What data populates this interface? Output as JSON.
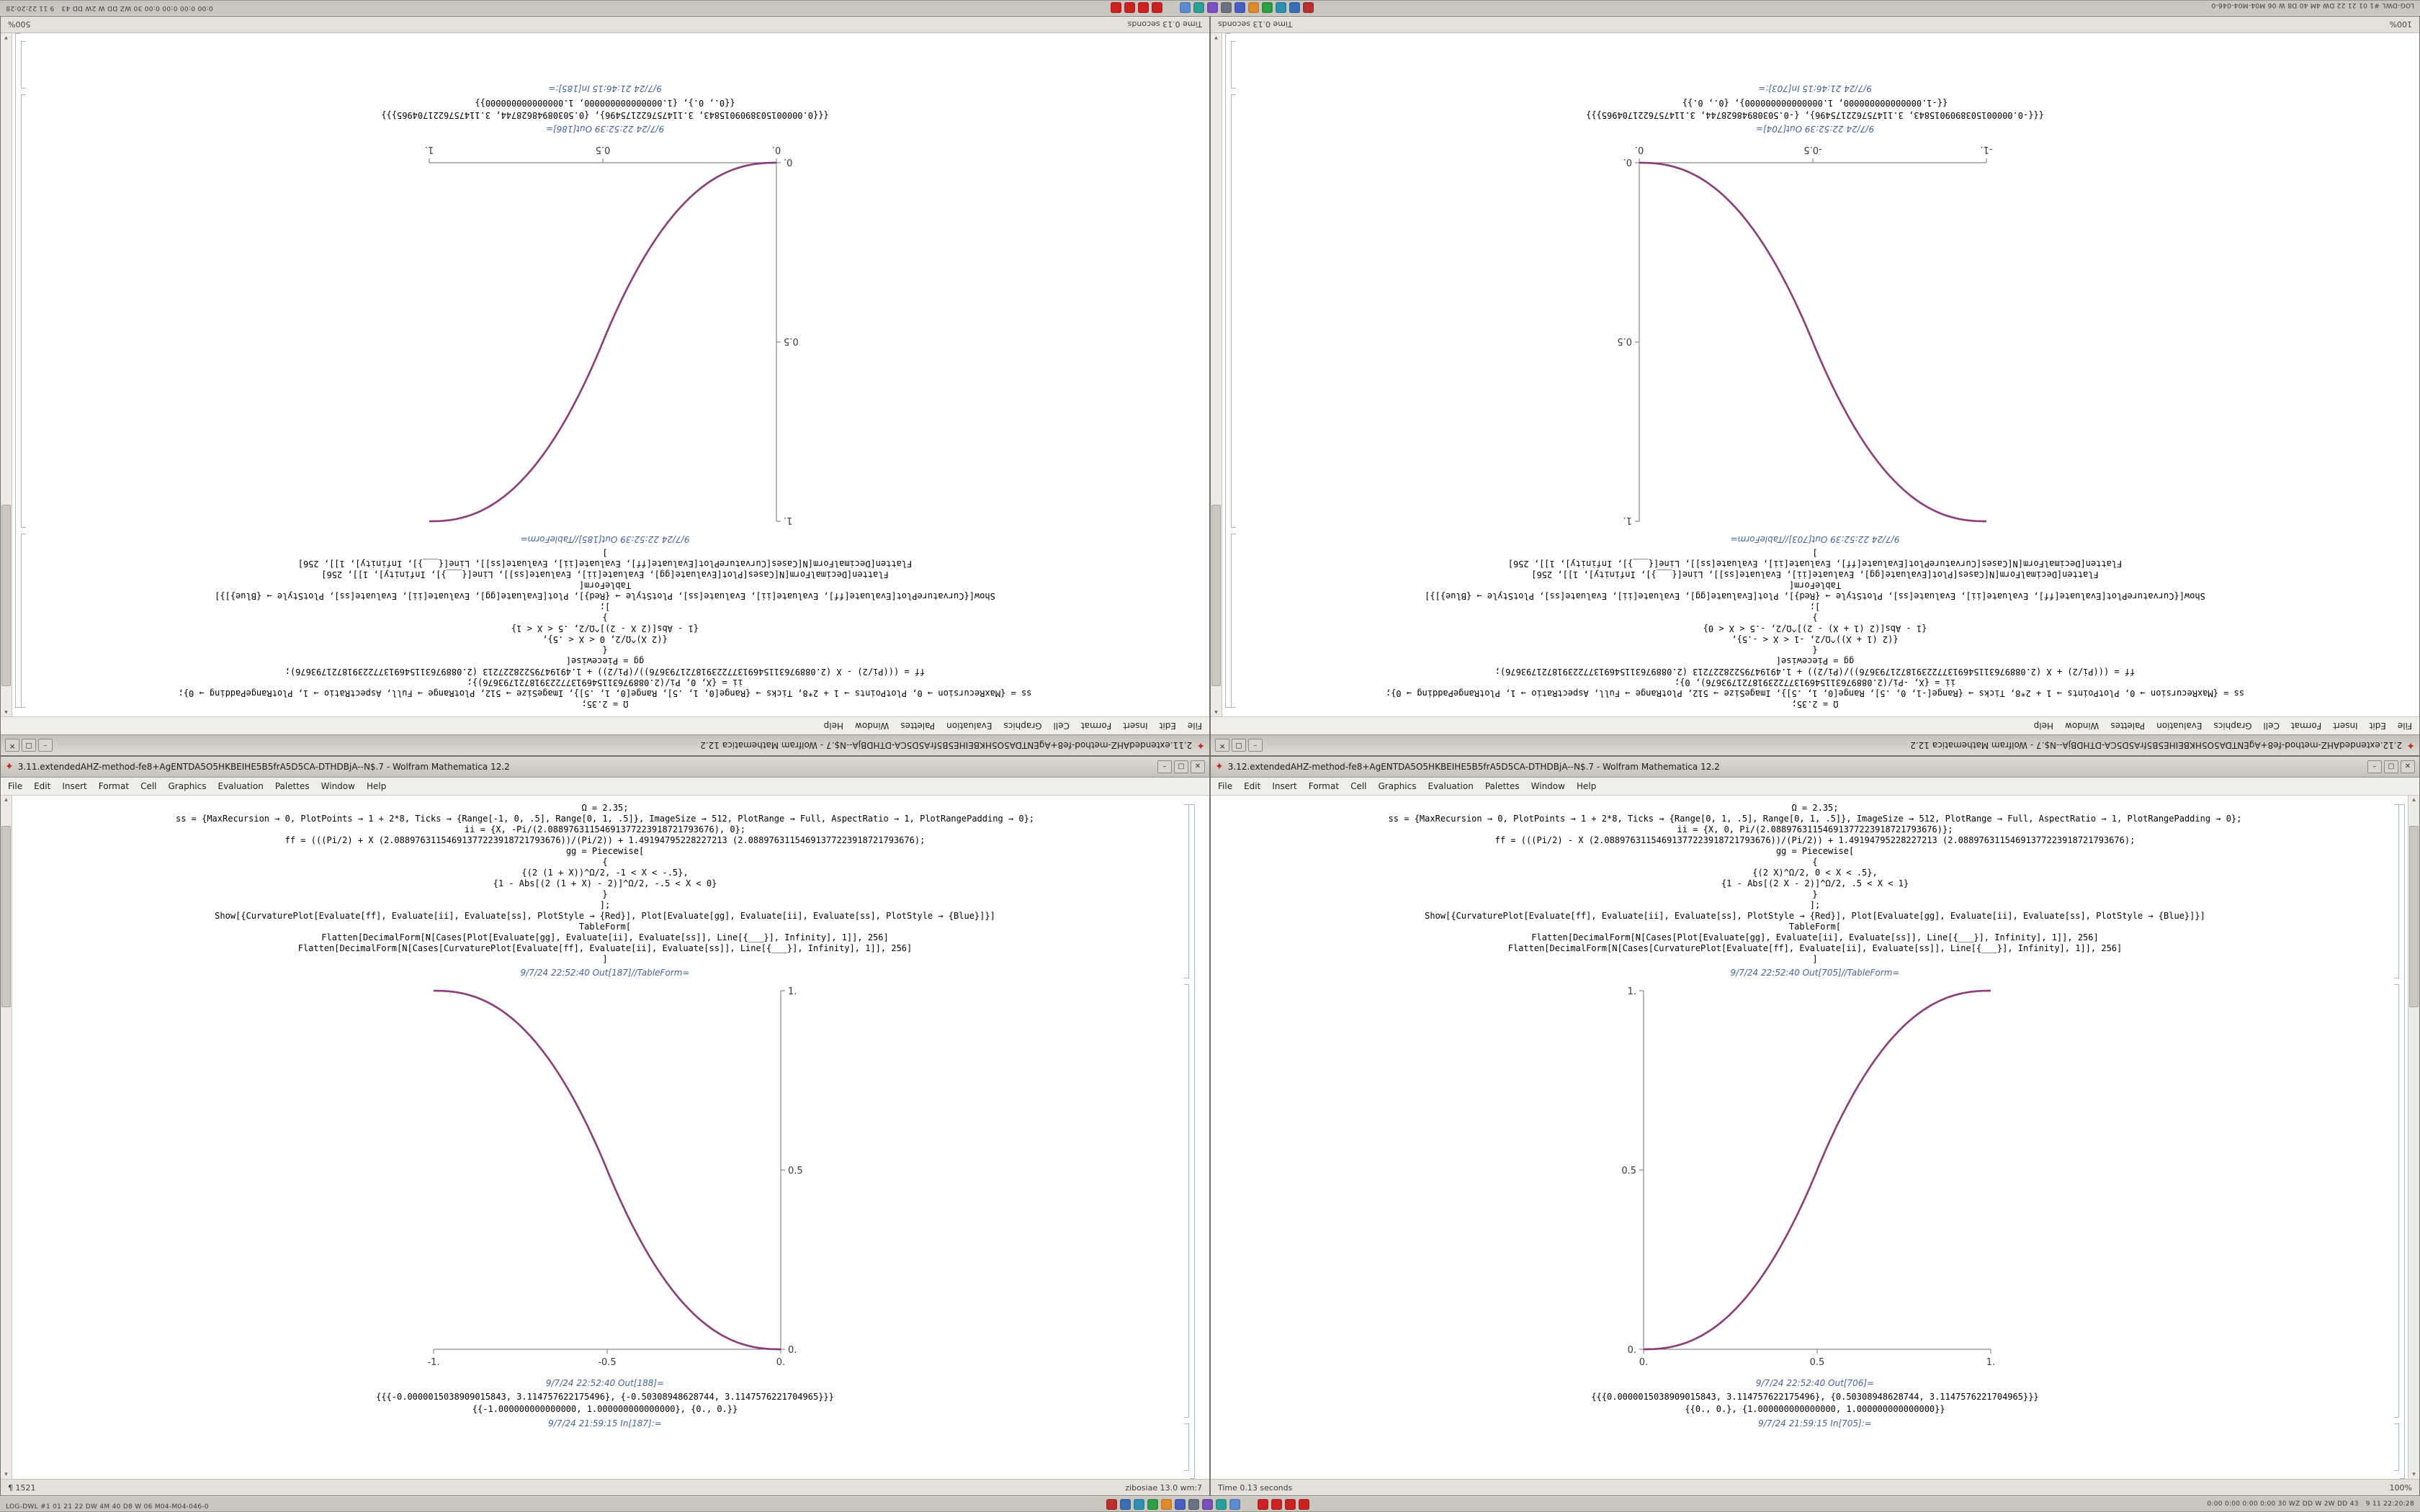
{
  "taskbar": {
    "left_text": "LOG-DWL #1 01 21 22 DW 4M 40 D8 W 06 M04-M04-046-0",
    "tray_text": "0:00 0:00 0:00 0:00 30 WZ DD W 2W DD 43",
    "clock": "9 11 22:20:28",
    "center_icons": [
      {
        "name": "launcher-icon",
        "color": "#b8312f"
      },
      {
        "name": "browser-icon",
        "color": "#3b6fb5"
      },
      {
        "name": "files-icon",
        "color": "#2e8fb5"
      },
      {
        "name": "terminal-icon",
        "color": "#2f9e44"
      },
      {
        "name": "editor-icon",
        "color": "#e08a2e"
      },
      {
        "name": "mail-icon",
        "color": "#4a5fc0"
      },
      {
        "name": "system-monitor-icon",
        "color": "#6b7280"
      },
      {
        "name": "media-icon",
        "color": "#7a4fc0"
      },
      {
        "name": "viewer-icon",
        "color": "#2aa198"
      },
      {
        "name": "settings-icon",
        "color": "#5b8bd0"
      },
      {
        "name": "mathematica-1-icon",
        "color": "#cc2222"
      },
      {
        "name": "mathematica-2-icon",
        "color": "#cc2222"
      },
      {
        "name": "mathematica-3-icon",
        "color": "#cc2222"
      },
      {
        "name": "mathematica-4-icon",
        "color": "#cc2222"
      }
    ]
  },
  "icons": {
    "spikey": "✦",
    "scroll_up": "▴",
    "scroll_down": "▾"
  },
  "window_controls": {
    "minimize": "–",
    "maximize": "▢",
    "close": "✕"
  },
  "menu_items": [
    "File",
    "Edit",
    "Insert",
    "Format",
    "Cell",
    "Graphics",
    "Evaluation",
    "Palettes",
    "Window",
    "Help"
  ],
  "code_increasing": [
    "Ω = 2.35;",
    "ss = {MaxRecursion → 0, PlotPoints → 1 + 2*8, Ticks → {Range[0, 1, .5], Range[0, 1, .5]}, ImageSize → 512, PlotRange → Full, AspectRatio → 1, PlotRangePadding → 0};",
    "ii = {X, 0, Pi/(2.08897631154691377223918721793676)};",
    "ff = (((Pi/2) - X (2.08897631154691377223918721793676))/(Pi/2)) + 1.49194795228227213 (2.08897631154691377223918721793676);",
    "gg = Piecewise[",
    "{",
    "{(2 X)^Ω/2, 0 < X < .5},",
    "{1 - Abs[(2 X - 2)]^Ω/2, .5 < X < 1}",
    "}",
    "];",
    "Show[{CurvaturePlot[Evaluate[ff], Evaluate[ii], Evaluate[ss], PlotStyle → {Red}], Plot[Evaluate[gg], Evaluate[ii], Evaluate[ss], PlotStyle → {Blue}]}]",
    "TableForm[",
    "Flatten[DecimalForm[N[Cases[Plot[Evaluate[gg], Evaluate[ii], Evaluate[ss]], Line[{___}], Infinity], 1]], 256]",
    "Flatten[DecimalForm[N[Cases[CurvaturePlot[Evaluate[ff], Evaluate[ii], Evaluate[ss]], Line[{___}], Infinity], 1]], 256]",
    "]"
  ],
  "code_decreasing": [
    "Ω = 2.35;",
    "ss = {MaxRecursion → 0, PlotPoints → 1 + 2*8, Ticks → {Range[-1, 0, .5], Range[0, 1, .5]}, ImageSize → 512, PlotRange → Full, AspectRatio → 1, PlotRangePadding → 0};",
    "ii = {X, -Pi/(2.08897631154691377223918721793676), 0};",
    "ff = (((Pi/2) + X (2.08897631154691377223918721793676))/(Pi/2)) + 1.49194795228227213 (2.08897631154691377223918721793676);",
    "gg = Piecewise[",
    "{",
    "{(2 (1 + X))^Ω/2, -1 < X < -.5},",
    "{1 - Abs[(2 (1 + X) - 2)]^Ω/2, -.5 < X < 0}",
    "}",
    "];",
    "Show[{CurvaturePlot[Evaluate[ff], Evaluate[ii], Evaluate[ss], PlotStyle → {Red}], Plot[Evaluate[gg], Evaluate[ii], Evaluate[ss], PlotStyle → {Blue}]}]",
    "TableForm[",
    "Flatten[DecimalForm[N[Cases[Plot[Evaluate[gg], Evaluate[ii], Evaluate[ss]], Line[{___}], Infinity], 1]], 256]",
    "Flatten[DecimalForm[N[Cases[CurvaturePlot[Evaluate[ff], Evaluate[ii], Evaluate[ss]], Line[{___}], Infinity], 1]], 256]",
    "]"
  ],
  "windows": {
    "tl": {
      "title": "2.11.extendedAHZ-method-fe8+AgENTDA5O5HKBEIHE5B5frA5D5CA-DTHDBjA--N$.7 - Wolfram Mathematica 12.2",
      "out1_label": "9/7/24 22:52:39 Out[185]//TableForm=",
      "out2_label": "9/7/24 22:52:39 Out[186]=",
      "in_label": "9/7/24 21:46:15 In[185]:=",
      "results": [
        "{{{0.0000015038909015843, 3.114757622175496}, {0.50308948628744, 3.1147576221704965}}}",
        "{{0., 0.}, {1.000000000000000, 1.000000000000000}}"
      ],
      "status_left": "Time 0.13 seconds",
      "status_right": "500%"
    },
    "tr": {
      "title": "2.12.extendedAHZ-method-fe8+AgENTDA5O5HKBEIHE5B5frA5D5CA-DTHDBjA--N$.7 - Wolfram Mathematica 12.2",
      "out1_label": "9/7/24 22:52:39 Out[703]//TableForm=",
      "out2_label": "9/7/24 22:52:39 Out[704]=",
      "in_label": "9/7/24 21:46:15 In[703]:=",
      "results": [
        "{{{-0.0000015038909015843, 3.114757622175496}, {-0.50308948628744, 3.1147576221704965}}}",
        "{{-1.000000000000000, 1.000000000000000}, {0., 0.}}"
      ],
      "status_left": "100%",
      "status_right": "Time 0.13 seconds"
    },
    "bl": {
      "title": "3.11.extendedAHZ-method-fe8+AgENTDA5O5HKBEIHE5B5frA5D5CA-DTHDBjA--N$.7 - Wolfram Mathematica 12.2",
      "out1_label": "9/7/24 22:52:40 Out[187]//TableForm=",
      "out2_label": "9/7/24 22:52:40 Out[188]=",
      "in_label": "9/7/24 21:59:15 In[187]:=",
      "results": [
        "{{{-0.0000015038909015843, 3.114757622175496}, {-0.50308948628744, 3.1147576221704965}}}",
        "{{-1.000000000000000, 1.000000000000000}, {0., 0.}}"
      ],
      "status_left": "¶ 1521",
      "status_right": "zibosiae 13.0 wm:7"
    },
    "br": {
      "title": "3.12.extendedAHZ-method-fe8+AgENTDA5O5HKBEIHE5B5frA5D5CA-DTHDBjA--N$.7 - Wolfram Mathematica 12.2",
      "out1_label": "9/7/24 22:52:40 Out[705]//TableForm=",
      "out2_label": "9/7/24 22:52:40 Out[706]=",
      "in_label": "9/7/24 21:59:15 In[705]:=",
      "results": [
        "{{{0.0000015038909015843, 3.114757622175496}, {0.50308948628744, 3.1147576221704965}}}",
        "{{0., 0.}, {1.000000000000000, 1.000000000000000}}"
      ],
      "status_left": "Time 0.13 seconds",
      "status_right": "100%"
    }
  },
  "chart_data": [
    {
      "type": "line",
      "title": "",
      "xlabel": "",
      "ylabel": "",
      "grid": false,
      "legend": "none",
      "direction": "increasing",
      "omega": 2.35,
      "xlim": [
        0,
        1
      ],
      "ylim": [
        0,
        1
      ],
      "y_axis_side": "left",
      "x": [
        0,
        0.125,
        0.25,
        0.375,
        0.5,
        0.625,
        0.75,
        0.875,
        1
      ],
      "series": [
        {
          "name": "CurvaturePlot",
          "color": "#cc2a2a",
          "values": [
            0,
            0.019,
            0.098,
            0.254,
            0.5,
            0.746,
            0.902,
            0.981,
            1
          ]
        },
        {
          "name": "Plot",
          "color": "#3646c8",
          "values": [
            0,
            0.019,
            0.098,
            0.254,
            0.5,
            0.746,
            0.902,
            0.981,
            1
          ]
        }
      ],
      "x_ticks": {
        "values": [
          0,
          0.5,
          1
        ],
        "labels": [
          "0.",
          "0.5",
          "1."
        ]
      },
      "y_ticks": {
        "values": [
          0,
          0.5,
          1
        ],
        "labels": [
          "0.",
          "0.5",
          "1."
        ]
      }
    },
    {
      "type": "line",
      "title": "",
      "xlabel": "",
      "ylabel": "",
      "grid": false,
      "legend": "none",
      "direction": "decreasing",
      "omega": 2.35,
      "xlim": [
        -1,
        0
      ],
      "ylim": [
        0,
        1
      ],
      "y_axis_side": "right",
      "x": [
        -1,
        -0.875,
        -0.75,
        -0.625,
        -0.5,
        -0.375,
        -0.25,
        -0.125,
        0
      ],
      "series": [
        {
          "name": "CurvaturePlot",
          "color": "#cc2a2a",
          "values": [
            1,
            0.981,
            0.902,
            0.746,
            0.5,
            0.254,
            0.098,
            0.019,
            0
          ]
        },
        {
          "name": "Plot",
          "color": "#3646c8",
          "values": [
            1,
            0.981,
            0.902,
            0.746,
            0.5,
            0.254,
            0.098,
            0.019,
            0
          ]
        }
      ],
      "x_ticks": {
        "values": [
          -1,
          -0.5,
          0
        ],
        "labels": [
          "-1.",
          "-0.5",
          "0."
        ]
      },
      "y_ticks": {
        "values": [
          0,
          0.5,
          1
        ],
        "labels": [
          "0.",
          "0.5",
          "1."
        ]
      }
    },
    {
      "type": "line",
      "title": "",
      "xlabel": "",
      "ylabel": "",
      "grid": false,
      "legend": "none",
      "direction": "decreasing",
      "omega": 2.35,
      "xlim": [
        -1,
        0
      ],
      "ylim": [
        0,
        1
      ],
      "y_axis_side": "right",
      "x": [
        -1,
        -0.875,
        -0.75,
        -0.625,
        -0.5,
        -0.375,
        -0.25,
        -0.125,
        0
      ],
      "series": [
        {
          "name": "CurvaturePlot",
          "color": "#cc2a2a",
          "values": [
            1,
            0.981,
            0.902,
            0.746,
            0.5,
            0.254,
            0.098,
            0.019,
            0
          ]
        },
        {
          "name": "Plot",
          "color": "#3646c8",
          "values": [
            1,
            0.981,
            0.902,
            0.746,
            0.5,
            0.254,
            0.098,
            0.019,
            0
          ]
        }
      ],
      "x_ticks": {
        "values": [
          -1,
          -0.5,
          0
        ],
        "labels": [
          "-1.",
          "-0.5",
          "0."
        ]
      },
      "y_ticks": {
        "values": [
          0,
          0.5,
          1
        ],
        "labels": [
          "0.",
          "0.5",
          "1."
        ]
      }
    },
    {
      "type": "line",
      "title": "",
      "xlabel": "",
      "ylabel": "",
      "grid": false,
      "legend": "none",
      "direction": "increasing",
      "omega": 2.35,
      "xlim": [
        0,
        1
      ],
      "ylim": [
        0,
        1
      ],
      "y_axis_side": "left",
      "x": [
        0,
        0.125,
        0.25,
        0.375,
        0.5,
        0.625,
        0.75,
        0.875,
        1
      ],
      "series": [
        {
          "name": "CurvaturePlot",
          "color": "#cc2a2a",
          "values": [
            0,
            0.019,
            0.098,
            0.254,
            0.5,
            0.746,
            0.902,
            0.981,
            1
          ]
        },
        {
          "name": "Plot",
          "color": "#3646c8",
          "values": [
            0,
            0.019,
            0.098,
            0.254,
            0.5,
            0.746,
            0.902,
            0.981,
            1
          ]
        }
      ],
      "x_ticks": {
        "values": [
          0,
          0.5,
          1
        ],
        "labels": [
          "0.",
          "0.5",
          "1."
        ]
      },
      "y_ticks": {
        "values": [
          0,
          0.5,
          1
        ],
        "labels": [
          "0.",
          "0.5",
          "1."
        ]
      }
    }
  ]
}
